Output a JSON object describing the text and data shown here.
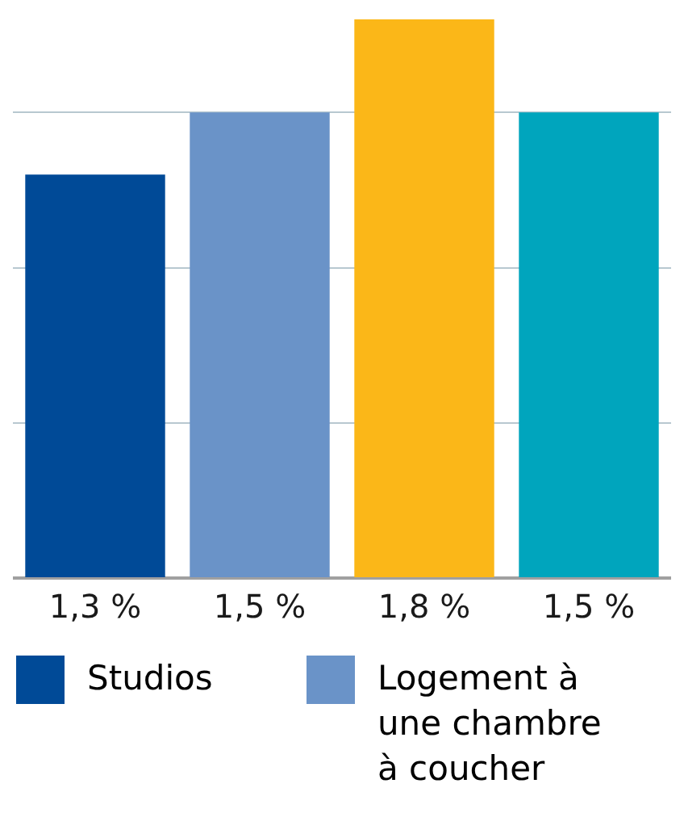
{
  "chart_data": {
    "type": "bar",
    "categories": [
      null,
      null,
      null,
      null
    ],
    "series": [
      {
        "colors": [
          "#004a97",
          "#6a93c8",
          "#fbb718",
          "#00a5bd"
        ],
        "values": [
          1.3,
          1.5,
          1.8,
          1.5
        ],
        "value_labels": [
          "1,3 %",
          "1,5 %",
          "1,8 %",
          "1,5 %"
        ]
      }
    ],
    "ylim": [
      0,
      1.8
    ],
    "yticks": [
      {
        "value": 0,
        "label": null
      },
      {
        "value": 0.5,
        "label": null
      },
      {
        "value": 1,
        "label": null
      },
      {
        "value": 1.5,
        "label": null
      }
    ],
    "grid": "y",
    "tick_labels": false,
    "annotations": [
      "Studios",
      "Logement à une chambre à coucher"
    ]
  }
}
